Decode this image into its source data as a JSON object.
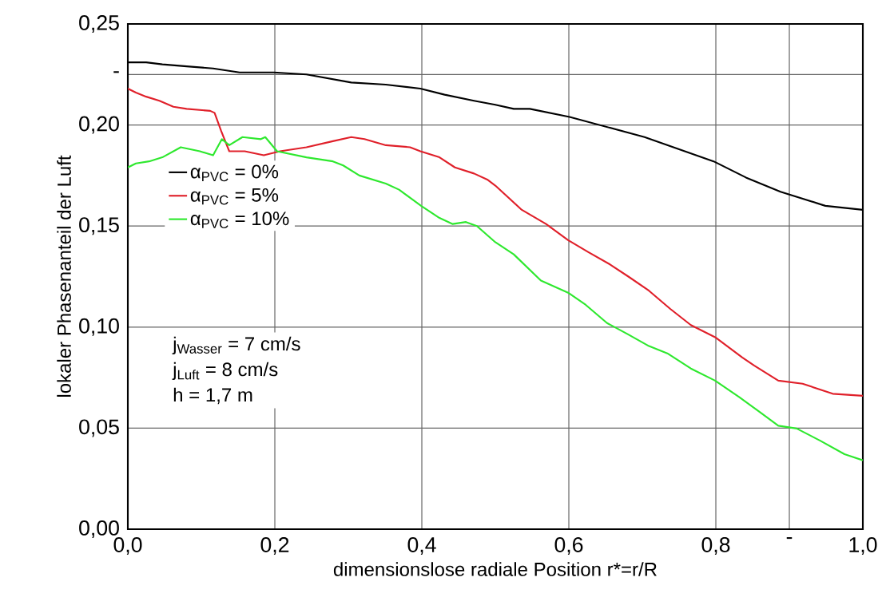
{
  "chart_data": {
    "type": "line",
    "xlabel": "dimensionslose radiale Position r*=r/R",
    "ylabel": "lokaler Phasenanteil der Luft",
    "xlim": [
      0,
      1.0
    ],
    "ylim": [
      0,
      0.25
    ],
    "xticks": [
      {
        "value": 0,
        "label": "0,0"
      },
      {
        "value": 0.2,
        "label": "0,2"
      },
      {
        "value": 0.4,
        "label": "0,4"
      },
      {
        "value": 0.6,
        "label": "0,6"
      },
      {
        "value": 0.8,
        "label": "0,8"
      },
      {
        "value": 0.9,
        "label": "-"
      },
      {
        "value": 1.0,
        "label": "1,0"
      }
    ],
    "yticks": [
      {
        "value": 0,
        "label": "0,00"
      },
      {
        "value": 0.05,
        "label": "0,05"
      },
      {
        "value": 0.1,
        "label": "0,10"
      },
      {
        "value": 0.15,
        "label": "0,15"
      },
      {
        "value": 0.2,
        "label": "0,20"
      },
      {
        "value": 0.225,
        "label": "-"
      },
      {
        "value": 0.25,
        "label": "0,25"
      }
    ],
    "grid": true,
    "legend": "left",
    "line_style": "solid",
    "marker": "none",
    "annotations": [
      "j$_{Wasser}$ = 7 cm/s",
      "j$_{Luft}$ = 8 cm/s",
      "h = 1,7 m"
    ],
    "series": [
      {
        "name": "α$_{PVC}$ = 0%",
        "color": "#000000",
        "x": [
          0,
          0.025,
          0.047,
          0.08,
          0.116,
          0.152,
          0.199,
          0.243,
          0.304,
          0.351,
          0.398,
          0.431,
          0.471,
          0.5,
          0.525,
          0.547,
          0.601,
          0.652,
          0.703,
          0.75,
          0.797,
          0.841,
          0.888,
          0.949,
          1.0
        ],
        "values": [
          0.231,
          0.231,
          0.23,
          0.229,
          0.228,
          0.226,
          0.226,
          0.225,
          0.221,
          0.22,
          0.218,
          0.215,
          0.212,
          0.21,
          0.208,
          0.208,
          0.204,
          0.199,
          0.194,
          0.188,
          0.182,
          0.174,
          0.167,
          0.16,
          0.158
        ]
      },
      {
        "name": "α$_{PVC}$ = 5%",
        "color": "#e0202a",
        "x": [
          0,
          0.011,
          0.025,
          0.043,
          0.062,
          0.08,
          0.112,
          0.118,
          0.127,
          0.138,
          0.159,
          0.185,
          0.207,
          0.243,
          0.279,
          0.304,
          0.322,
          0.351,
          0.384,
          0.398,
          0.424,
          0.445,
          0.471,
          0.489,
          0.5,
          0.536,
          0.569,
          0.599,
          0.627,
          0.656,
          0.681,
          0.709,
          0.738,
          0.766,
          0.799,
          0.836,
          0.852,
          0.885,
          0.918,
          0.959,
          1.0
        ],
        "values": [
          0.218,
          0.216,
          0.214,
          0.212,
          0.209,
          0.208,
          0.207,
          0.206,
          0.197,
          0.187,
          0.187,
          0.185,
          0.187,
          0.189,
          0.192,
          0.194,
          0.193,
          0.19,
          0.189,
          0.187,
          0.184,
          0.179,
          0.176,
          0.173,
          0.17,
          0.158,
          0.151,
          0.143,
          0.137,
          0.131,
          0.125,
          0.118,
          0.109,
          0.101,
          0.095,
          0.085,
          0.081,
          0.0735,
          0.072,
          0.067,
          0.066
        ]
      },
      {
        "name": "α$_{PVC}$ = 10%",
        "color": "#2ee82e",
        "x": [
          0,
          0.011,
          0.029,
          0.047,
          0.072,
          0.098,
          0.116,
          0.128,
          0.138,
          0.156,
          0.181,
          0.187,
          0.203,
          0.243,
          0.279,
          0.293,
          0.315,
          0.351,
          0.369,
          0.399,
          0.424,
          0.442,
          0.46,
          0.475,
          0.5,
          0.525,
          0.562,
          0.599,
          0.623,
          0.652,
          0.68,
          0.709,
          0.734,
          0.766,
          0.799,
          0.832,
          0.86,
          0.885,
          0.91,
          0.942,
          0.975,
          1.0
        ],
        "values": [
          0.179,
          0.181,
          0.182,
          0.184,
          0.189,
          0.187,
          0.185,
          0.193,
          0.19,
          0.194,
          0.193,
          0.194,
          0.187,
          0.184,
          0.182,
          0.18,
          0.175,
          0.171,
          0.168,
          0.16,
          0.154,
          0.151,
          0.152,
          0.15,
          0.142,
          0.136,
          0.123,
          0.117,
          0.111,
          0.102,
          0.0965,
          0.0906,
          0.087,
          0.0795,
          0.0735,
          0.0653,
          0.0579,
          0.0512,
          0.0498,
          0.0438,
          0.0371,
          0.0341
        ]
      }
    ]
  }
}
